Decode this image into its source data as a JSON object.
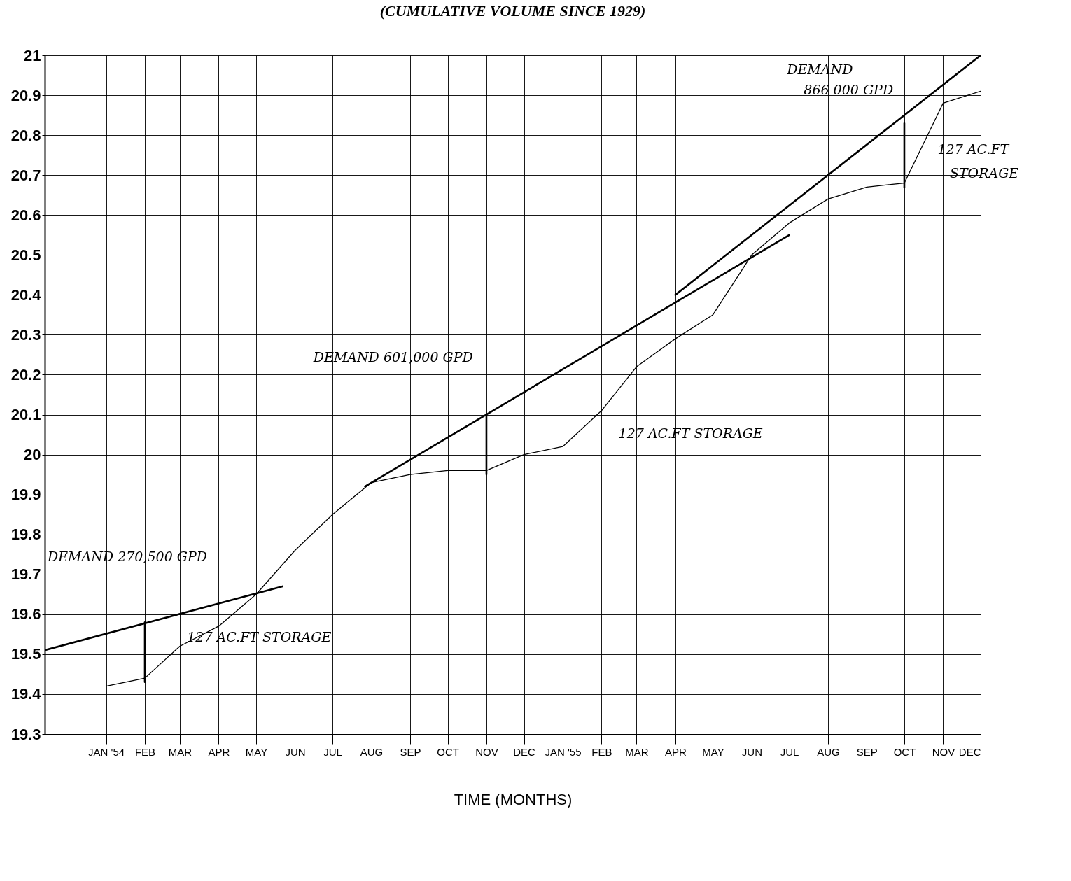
{
  "chart_data": {
    "type": "line",
    "title": "(CUMULATIVE VOLUME SINCE 1929)",
    "xlabel": "TIME (MONTHS)",
    "xlim": [
      "1953-11-13",
      "1955-12"
    ],
    "ylim": [
      19.3,
      21
    ],
    "xticks": [
      {
        "value": "1954-01",
        "label": "JAN '54"
      },
      {
        "value": "1954-02",
        "label": "FEB"
      },
      {
        "value": "1954-03",
        "label": "MAR"
      },
      {
        "value": "1954-04",
        "label": "APR"
      },
      {
        "value": "1954-05",
        "label": "MAY"
      },
      {
        "value": "1954-06",
        "label": "JUN"
      },
      {
        "value": "1954-07",
        "label": "JUL"
      },
      {
        "value": "1954-08",
        "label": "AUG"
      },
      {
        "value": "1954-09",
        "label": "SEP"
      },
      {
        "value": "1954-10",
        "label": "OCT"
      },
      {
        "value": "1954-11",
        "label": "NOV"
      },
      {
        "value": "1954-12",
        "label": "DEC"
      },
      {
        "value": "1955-01",
        "label": "JAN '55"
      },
      {
        "value": "1955-02",
        "label": "FEB"
      },
      {
        "value": "1955-03",
        "label": "MAR"
      },
      {
        "value": "1955-04",
        "label": "APR"
      },
      {
        "value": "1955-05",
        "label": "MAY"
      },
      {
        "value": "1955-06",
        "label": "JUN"
      },
      {
        "value": "1955-07",
        "label": "JUL"
      },
      {
        "value": "1955-08",
        "label": "AUG"
      },
      {
        "value": "1955-09",
        "label": "SEP"
      },
      {
        "value": "1955-10",
        "label": "OCT"
      },
      {
        "value": "1955-11",
        "label": "NOV"
      },
      {
        "value": "1955-12",
        "label": "DEC"
      }
    ],
    "yticks": [
      19.3,
      19.4,
      19.5,
      19.6,
      19.7,
      19.8,
      19.9,
      20,
      20.1,
      20.2,
      20.3,
      20.4,
      20.5,
      20.6,
      20.7,
      20.8,
      20.9,
      21
    ],
    "grid": true,
    "series": [
      {
        "color": "#000000",
        "x": [
          "1954-01",
          "1954-02",
          "1954-03",
          "1954-04",
          "1954-05",
          "1954-06",
          "1954-07",
          "1954-08",
          "1954-09",
          "1954-10",
          "1954-11",
          "1954-12",
          "1955-01",
          "1955-02",
          "1955-03",
          "1955-04",
          "1955-05",
          "1955-06",
          "1955-07",
          "1955-08",
          "1955-09",
          "1955-10",
          "1955-11",
          "1955-12"
        ],
        "values": [
          19.42,
          19.44,
          19.52,
          19.57,
          19.65,
          19.76,
          19.85,
          19.93,
          19.95,
          19.96,
          19.96,
          20.0,
          20.02,
          20.11,
          20.22,
          20.29,
          20.35,
          20.5,
          20.58,
          20.64,
          20.67,
          20.68,
          20.88,
          20.91
        ]
      },
      {
        "color": "#000000",
        "x": [
          "1953-11-13",
          "1954-05-22"
        ],
        "values": [
          19.51,
          19.67
        ]
      },
      {
        "color": "#000000",
        "x": [
          "1954-07-27",
          "1955-07"
        ],
        "values": [
          19.92,
          20.55
        ]
      },
      {
        "color": "#000000",
        "x": [
          "1955-04",
          "1955-12"
        ],
        "values": [
          20.4,
          21.0
        ]
      },
      {
        "color": "#000000",
        "x": [
          "1954-02",
          "1954-02"
        ],
        "values": [
          19.43,
          19.58
        ]
      },
      {
        "color": "#000000",
        "x": [
          "1954-11",
          "1954-11"
        ],
        "values": [
          19.95,
          20.1
        ]
      },
      {
        "color": "#000000",
        "x": [
          "1955-10",
          "1955-10"
        ],
        "values": [
          20.67,
          20.83
        ]
      }
    ],
    "annotations": [
      "DEMAND 270,500 GPD",
      "127 AC.FT STORAGE",
      "DEMAND 601,000 GPD",
      "127 AC.FT STORAGE",
      "DEMAND",
      "866 000 GPD",
      "127 AC.FT",
      "STORAGE"
    ]
  }
}
